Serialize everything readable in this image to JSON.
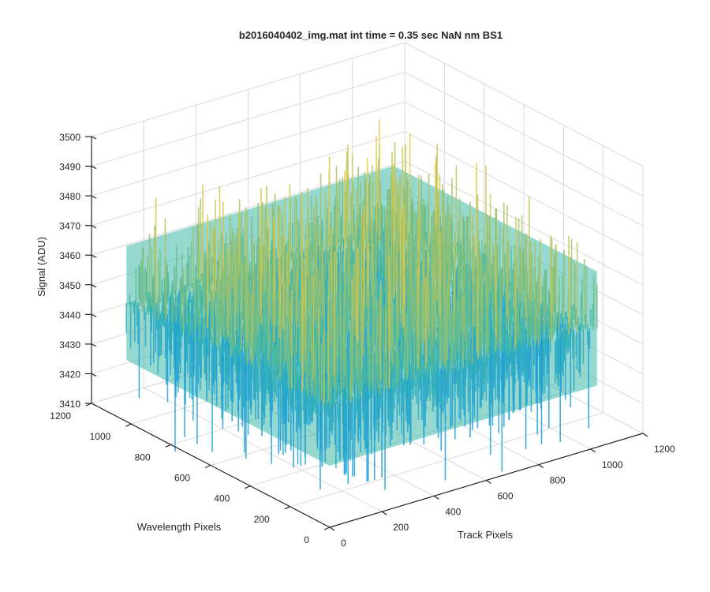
{
  "chart_data": {
    "type": "surface",
    "title": "b2016040402_img.mat int time = 0.35 sec  NaN nm BS1",
    "xlabel": "Track Pixels",
    "ylabel": "Wavelength Pixels",
    "zlabel": "Signal (ADU)",
    "xlim": [
      0,
      1200
    ],
    "ylim": [
      0,
      1200
    ],
    "zlim": [
      3410,
      3500
    ],
    "x_ticks": [
      "0",
      "200",
      "400",
      "600",
      "800",
      "1000",
      "1200"
    ],
    "y_ticks": [
      "0",
      "200",
      "400",
      "600",
      "800",
      "1000",
      "1200"
    ],
    "z_ticks": [
      "3410",
      "3420",
      "3430",
      "3440",
      "3450",
      "3460",
      "3470",
      "3480",
      "3490",
      "3500"
    ],
    "grid": true,
    "colormap": "parula",
    "data_extent": {
      "x": [
        0,
        1024
      ],
      "y": [
        0,
        1024
      ]
    },
    "signal_level": 3450,
    "signal_range": [
      3420,
      3490
    ],
    "colors": {
      "low": "#1f9fd8",
      "mid": "#3cb8a8",
      "high": "#e8c840",
      "axis": "#262626",
      "grid": "#d9d9d9"
    }
  }
}
